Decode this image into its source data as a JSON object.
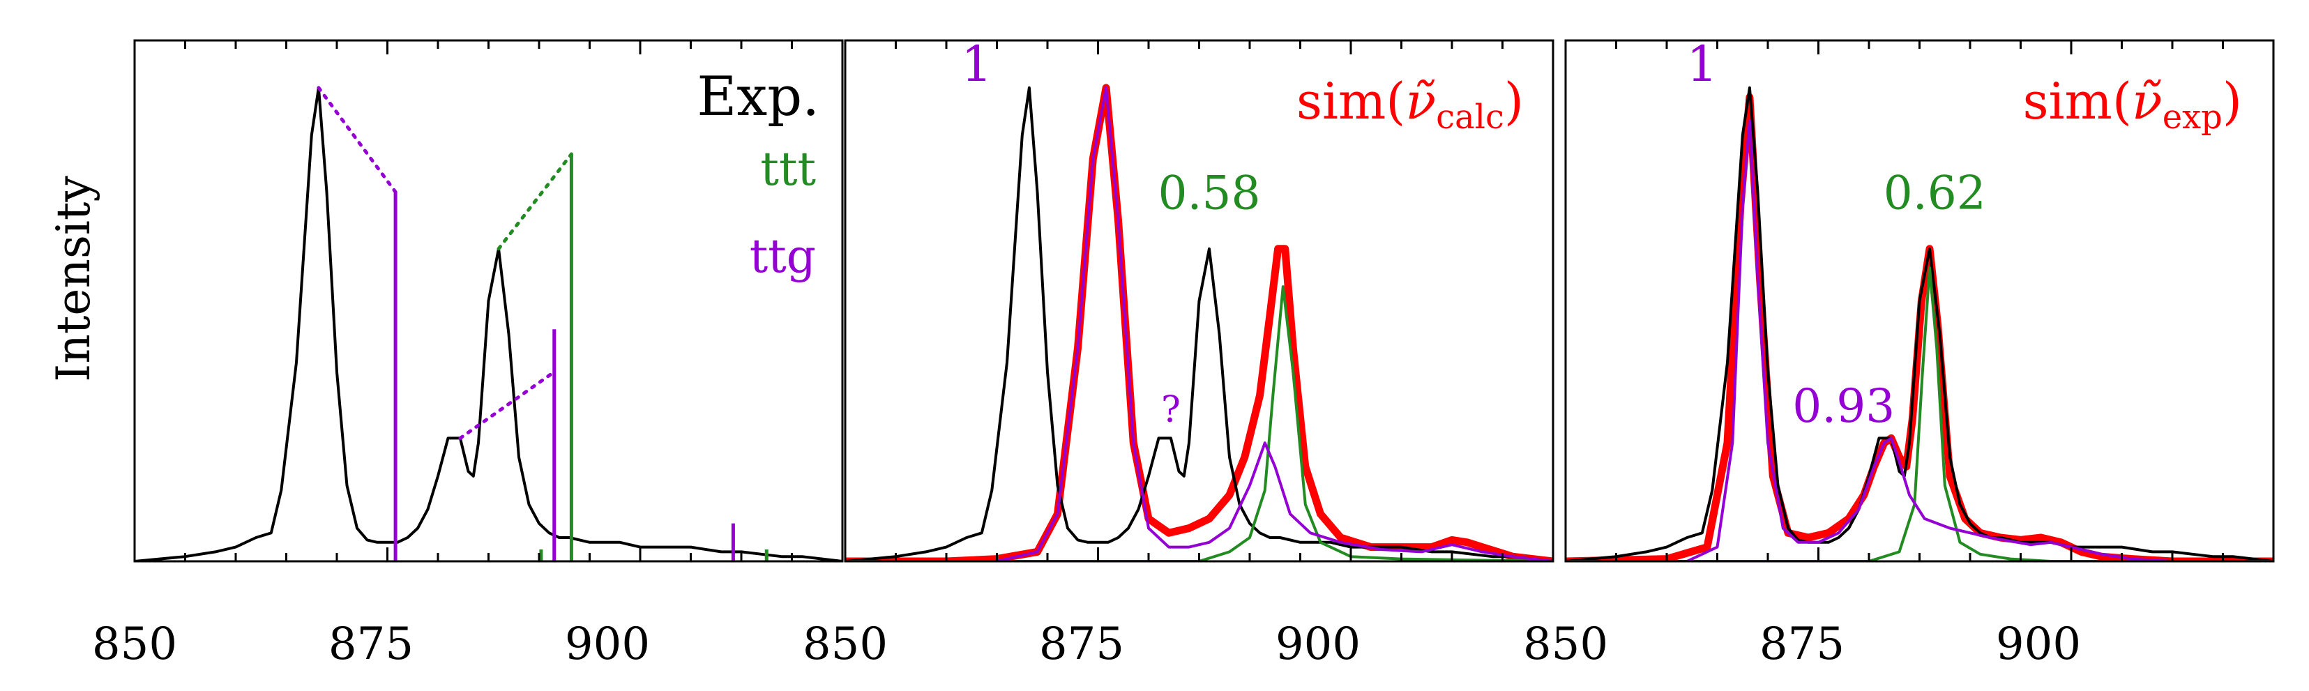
{
  "colors": {
    "exp": "#000000",
    "ttt": "#228b22",
    "ttg": "#9400d3",
    "sim": "#ff0000"
  },
  "chart_data": [
    {
      "type": "line",
      "panel": "left",
      "ylabel": "Intensity",
      "xlim": [
        850,
        920
      ],
      "ylim": [
        0,
        1.1
      ],
      "xticks": [
        "850",
        "875",
        "900"
      ],
      "legend": [
        "Exp.",
        "ttt",
        "ttg"
      ],
      "legend_placement": "top-right",
      "series": [
        {
          "name": "Exp.",
          "style": "line",
          "color_key": "exp",
          "width": 4,
          "x": [
            850,
            855,
            858,
            860,
            862,
            863.5,
            864.5,
            866,
            867.5,
            868.2,
            869,
            870,
            871,
            872,
            873,
            874,
            875,
            876,
            877,
            878,
            879,
            880,
            881,
            882.2,
            883,
            883.5,
            884,
            885,
            886,
            887,
            888,
            889,
            890,
            891,
            892,
            893,
            895,
            898,
            900,
            903,
            905,
            908,
            910,
            912,
            914,
            916,
            918,
            920
          ],
          "y": [
            0.0,
            0.01,
            0.02,
            0.03,
            0.05,
            0.06,
            0.15,
            0.42,
            0.9,
            1.0,
            0.78,
            0.4,
            0.16,
            0.07,
            0.045,
            0.04,
            0.04,
            0.04,
            0.05,
            0.07,
            0.11,
            0.18,
            0.26,
            0.26,
            0.19,
            0.18,
            0.25,
            0.55,
            0.66,
            0.48,
            0.22,
            0.12,
            0.08,
            0.06,
            0.05,
            0.05,
            0.04,
            0.04,
            0.03,
            0.03,
            0.03,
            0.02,
            0.02,
            0.015,
            0.01,
            0.01,
            0.005,
            0.0
          ]
        },
        {
          "name": "ttg",
          "style": "stick",
          "color_key": "ttg",
          "x": [
            875.8,
            891.5,
            909.2
          ],
          "y": [
            0.78,
            0.49,
            0.08
          ]
        },
        {
          "name": "ttt",
          "style": "stick",
          "color_key": "ttt",
          "x": [
            893.2,
            890.2,
            912.5
          ],
          "y": [
            0.86,
            0.025,
            0.025
          ]
        },
        {
          "name": "ttg-assignment",
          "style": "dotted",
          "color_key": "ttg",
          "segments": [
            [
              [
                868.2,
                1.0
              ],
              [
                875.8,
                0.78
              ]
            ],
            [
              [
                882.2,
                0.26
              ],
              [
                891.5,
                0.4
              ]
            ]
          ]
        },
        {
          "name": "ttt-assignment",
          "style": "dotted",
          "color_key": "ttt",
          "segments": [
            [
              [
                886.0,
                0.66
              ],
              [
                893.2,
                0.86
              ]
            ]
          ]
        }
      ]
    },
    {
      "type": "line",
      "panel": "middle",
      "xlim": [
        850,
        920
      ],
      "ylim": [
        0,
        1.1
      ],
      "xticks": [
        "850",
        "875",
        "900"
      ],
      "title_prefix": "sim(",
      "title_var": "ν̃",
      "title_sub": "calc",
      "title_suffix": ")",
      "annotations": [
        {
          "text": "1",
          "x": 863,
          "y": 1.0,
          "color_key": "ttg"
        },
        {
          "text": "0.58",
          "x": 886,
          "y": 0.73,
          "color_key": "ttt"
        },
        {
          "text": "?",
          "x": 882.2,
          "y": 0.28,
          "color_key": "ttg"
        }
      ],
      "series": [
        {
          "name": "sim-total",
          "color_key": "sim",
          "width": 11,
          "x": [
            850,
            860,
            865,
            869,
            871,
            873,
            874.5,
            875.8,
            877,
            878.5,
            880,
            882,
            884,
            886,
            888,
            889.5,
            891,
            892,
            892.8,
            893.5,
            894.3,
            895.5,
            897,
            899,
            902,
            905,
            908,
            910,
            911.5,
            913,
            914.5,
            916,
            920
          ],
          "y": [
            0.0,
            0.0,
            0.005,
            0.02,
            0.1,
            0.45,
            0.85,
            1.0,
            0.72,
            0.25,
            0.09,
            0.06,
            0.07,
            0.09,
            0.14,
            0.22,
            0.35,
            0.52,
            0.66,
            0.66,
            0.45,
            0.2,
            0.1,
            0.05,
            0.03,
            0.03,
            0.03,
            0.045,
            0.04,
            0.03,
            0.02,
            0.01,
            0.0
          ]
        },
        {
          "name": "Exp.",
          "color_key": "exp",
          "width": 4,
          "x": [
            850,
            855,
            858,
            860,
            862,
            863.5,
            864.5,
            866,
            867.5,
            868.2,
            869,
            870,
            871,
            872,
            873,
            874,
            875,
            876,
            877,
            878,
            879,
            880,
            881,
            882.2,
            883,
            883.5,
            884,
            885,
            886,
            887,
            888,
            889,
            890,
            891,
            892,
            893,
            895,
            898,
            900,
            903,
            905,
            908,
            910,
            912,
            914,
            916,
            918,
            920
          ],
          "y": [
            0.0,
            0.01,
            0.02,
            0.03,
            0.05,
            0.06,
            0.15,
            0.42,
            0.9,
            1.0,
            0.78,
            0.4,
            0.16,
            0.07,
            0.045,
            0.04,
            0.04,
            0.04,
            0.05,
            0.07,
            0.11,
            0.18,
            0.26,
            0.26,
            0.19,
            0.18,
            0.25,
            0.55,
            0.66,
            0.48,
            0.22,
            0.12,
            0.08,
            0.06,
            0.05,
            0.05,
            0.04,
            0.04,
            0.03,
            0.03,
            0.03,
            0.02,
            0.02,
            0.015,
            0.01,
            0.01,
            0.005,
            0.0
          ]
        },
        {
          "name": "ttt",
          "color_key": "ttt",
          "width": 4,
          "x": [
            850,
            885,
            888,
            890,
            891.5,
            892.3,
            893.3,
            894.3,
            895.5,
            897,
            900,
            905,
            920
          ],
          "y": [
            0.0,
            0.0,
            0.02,
            0.05,
            0.15,
            0.35,
            0.58,
            0.4,
            0.12,
            0.04,
            0.01,
            0.005,
            0.0
          ]
        },
        {
          "name": "ttg",
          "color_key": "ttg",
          "width": 4,
          "x": [
            850,
            865,
            869,
            871,
            873,
            874.5,
            875.8,
            877,
            878.5,
            880,
            882,
            884,
            886,
            888,
            890,
            891.5,
            892.5,
            894,
            896,
            899,
            903,
            907,
            910,
            913,
            916,
            920
          ],
          "y": [
            0.0,
            0.0,
            0.02,
            0.1,
            0.45,
            0.85,
            1.0,
            0.72,
            0.25,
            0.07,
            0.03,
            0.03,
            0.04,
            0.07,
            0.16,
            0.25,
            0.2,
            0.1,
            0.06,
            0.04,
            0.025,
            0.02,
            0.035,
            0.02,
            0.01,
            0.0
          ]
        }
      ]
    },
    {
      "type": "line",
      "panel": "right",
      "xlim": [
        850,
        920
      ],
      "ylim": [
        0,
        1.1
      ],
      "xticks": [
        "850",
        "875",
        "900"
      ],
      "title_prefix": "sim(",
      "title_var": "ν̃",
      "title_sub": "exp",
      "title_suffix": ")",
      "annotations": [
        {
          "text": "1",
          "x": 863.5,
          "y": 1.0,
          "color_key": "ttg"
        },
        {
          "text": "0.62",
          "x": 886.5,
          "y": 0.73,
          "color_key": "ttt"
        },
        {
          "text": "0.93",
          "x": 877.5,
          "y": 0.28,
          "color_key": "ttg"
        }
      ],
      "series": [
        {
          "name": "sim-total",
          "color_key": "sim",
          "width": 11,
          "x": [
            850,
            860,
            864,
            866,
            867.3,
            868.2,
            869.2,
            870.5,
            872,
            874,
            876,
            878,
            879.5,
            880.5,
            881.5,
            882.2,
            883,
            883.7,
            884.3,
            885.2,
            886,
            886.8,
            888,
            889.5,
            891,
            893,
            895,
            897,
            899,
            901,
            903,
            906,
            910,
            920
          ],
          "y": [
            0.0,
            0.005,
            0.03,
            0.25,
            0.75,
            0.98,
            0.6,
            0.18,
            0.06,
            0.05,
            0.06,
            0.09,
            0.14,
            0.2,
            0.25,
            0.26,
            0.22,
            0.2,
            0.3,
            0.55,
            0.66,
            0.5,
            0.18,
            0.09,
            0.06,
            0.05,
            0.045,
            0.05,
            0.04,
            0.02,
            0.01,
            0.005,
            0.0,
            0.0
          ]
        },
        {
          "name": "Exp.",
          "color_key": "exp",
          "width": 4,
          "x": [
            850,
            855,
            858,
            860,
            862,
            863.5,
            864.5,
            866,
            867.5,
            868.2,
            869,
            870,
            871,
            872,
            873,
            874,
            875,
            876,
            877,
            878,
            879,
            880,
            881,
            882.2,
            883,
            883.5,
            884,
            885,
            886,
            887,
            888,
            889,
            890,
            891,
            892,
            893,
            895,
            898,
            900,
            903,
            905,
            908,
            910,
            912,
            914,
            916,
            918,
            920
          ],
          "y": [
            0.0,
            0.01,
            0.02,
            0.03,
            0.05,
            0.06,
            0.15,
            0.42,
            0.9,
            1.0,
            0.78,
            0.4,
            0.16,
            0.07,
            0.045,
            0.04,
            0.04,
            0.04,
            0.05,
            0.07,
            0.11,
            0.18,
            0.26,
            0.26,
            0.19,
            0.18,
            0.25,
            0.55,
            0.66,
            0.48,
            0.22,
            0.12,
            0.08,
            0.06,
            0.05,
            0.05,
            0.04,
            0.04,
            0.03,
            0.03,
            0.03,
            0.02,
            0.02,
            0.015,
            0.01,
            0.01,
            0.005,
            0.0
          ]
        },
        {
          "name": "ttt",
          "color_key": "ttt",
          "width": 4,
          "x": [
            850,
            880,
            883,
            884.5,
            885.3,
            886,
            886.7,
            887.5,
            889,
            891,
            894,
            898,
            920
          ],
          "y": [
            0.0,
            0.0,
            0.02,
            0.12,
            0.4,
            0.62,
            0.45,
            0.16,
            0.04,
            0.015,
            0.005,
            0.0,
            0.0
          ]
        },
        {
          "name": "ttg",
          "color_key": "ttg",
          "width": 4,
          "x": [
            850,
            862,
            865,
            866.5,
            867.5,
            868.2,
            869,
            870,
            871.5,
            873,
            875,
            877,
            879,
            880.5,
            881.5,
            882.2,
            883,
            884,
            885.5,
            888,
            892,
            896,
            898,
            900,
            903,
            906,
            910,
            920
          ],
          "y": [
            0.0,
            0.0,
            0.03,
            0.25,
            0.75,
            0.93,
            0.6,
            0.25,
            0.07,
            0.04,
            0.04,
            0.06,
            0.11,
            0.2,
            0.25,
            0.26,
            0.21,
            0.14,
            0.09,
            0.07,
            0.05,
            0.035,
            0.04,
            0.03,
            0.015,
            0.005,
            0.0,
            0.0
          ]
        }
      ]
    }
  ]
}
